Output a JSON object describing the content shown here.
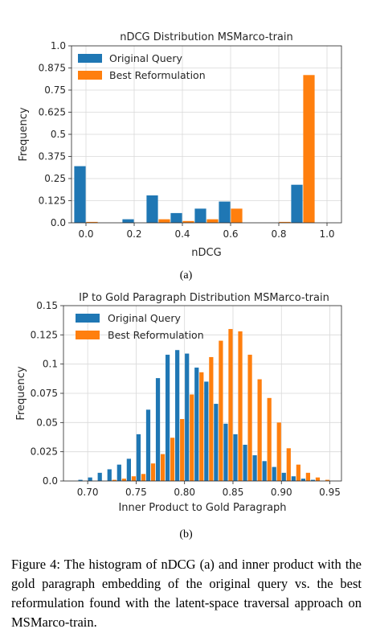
{
  "colors": {
    "original": "#1f77b4",
    "best": "#ff7f0e",
    "grid": "#d9d9d9"
  },
  "figure": {
    "sub_a": "(a)",
    "sub_b": "(b)",
    "caption": "Figure 4: The histogram of nDCG (a) and inner product with the gold paragraph embedding of the original query vs. the best reformulation found with the latent-space traversal approach on MSMarco-train."
  },
  "chart_data": [
    {
      "type": "bar",
      "title": "nDCG Distribution MSMarco-train",
      "xlabel": "nDCG",
      "ylabel": "Frequency",
      "xlim": [
        -0.06,
        1.06
      ],
      "ylim": [
        0,
        1.0
      ],
      "xticks": [
        "0.0",
        "0.2",
        "0.4",
        "0.6",
        "0.8",
        "1.0"
      ],
      "yticks": [
        "0.0",
        "0.125",
        "0.25",
        "0.375",
        "0.5",
        "0.625",
        "0.75",
        "0.875",
        "1.0"
      ],
      "grid": true,
      "legend_position": "top-left",
      "bin_width": 0.1,
      "bin_starts": [
        -0.05,
        0.05,
        0.15,
        0.25,
        0.35,
        0.45,
        0.55,
        0.65,
        0.75,
        0.85
      ],
      "series": [
        {
          "name": "Original Query",
          "values": [
            0.32,
            0.0,
            0.02,
            0.155,
            0.055,
            0.08,
            0.12,
            0.0,
            0.0,
            0.215
          ]
        },
        {
          "name": "Best Reformulation",
          "values": [
            0.005,
            0.0,
            0.0,
            0.02,
            0.01,
            0.02,
            0.08,
            0.0,
            0.005,
            0.835
          ]
        }
      ]
    },
    {
      "type": "bar",
      "title": "IP to Gold Paragraph Distribution MSMarco-train",
      "xlabel": "Inner Product to Gold Paragraph",
      "ylabel": "Frequency",
      "xlim": [
        0.675,
        0.962
      ],
      "ylim": [
        0,
        0.15
      ],
      "xticks": [
        "0.70",
        "0.75",
        "0.80",
        "0.85",
        "0.90",
        "0.95"
      ],
      "yticks": [
        "0.0",
        "0.025",
        "0.05",
        "0.075",
        "0.1",
        "0.125",
        "0.15"
      ],
      "grid": true,
      "legend_position": "top-left",
      "bin_width": 0.01,
      "bin_starts": [
        0.68,
        0.69,
        0.7,
        0.71,
        0.72,
        0.73,
        0.74,
        0.75,
        0.76,
        0.77,
        0.78,
        0.79,
        0.8,
        0.81,
        0.82,
        0.83,
        0.84,
        0.85,
        0.86,
        0.87,
        0.88,
        0.89,
        0.9,
        0.91,
        0.92,
        0.93,
        0.94,
        0.95
      ],
      "series": [
        {
          "name": "Original Query",
          "values": [
            0,
            0.001,
            0.003,
            0.007,
            0.01,
            0.014,
            0.019,
            0.04,
            0.061,
            0.088,
            0.108,
            0.112,
            0.109,
            0.097,
            0.085,
            0.066,
            0.049,
            0.04,
            0.031,
            0.022,
            0.017,
            0.012,
            0.007,
            0.004,
            0.002,
            0.001,
            0,
            0
          ]
        },
        {
          "name": "Best Reformulation",
          "values": [
            0,
            0,
            0,
            0,
            0.001,
            0.002,
            0.004,
            0.006,
            0.015,
            0.023,
            0.037,
            0.053,
            0.074,
            0.093,
            0.106,
            0.12,
            0.13,
            0.128,
            0.108,
            0.087,
            0.071,
            0.05,
            0.028,
            0.014,
            0.007,
            0.003,
            0.001,
            0
          ]
        }
      ]
    }
  ]
}
